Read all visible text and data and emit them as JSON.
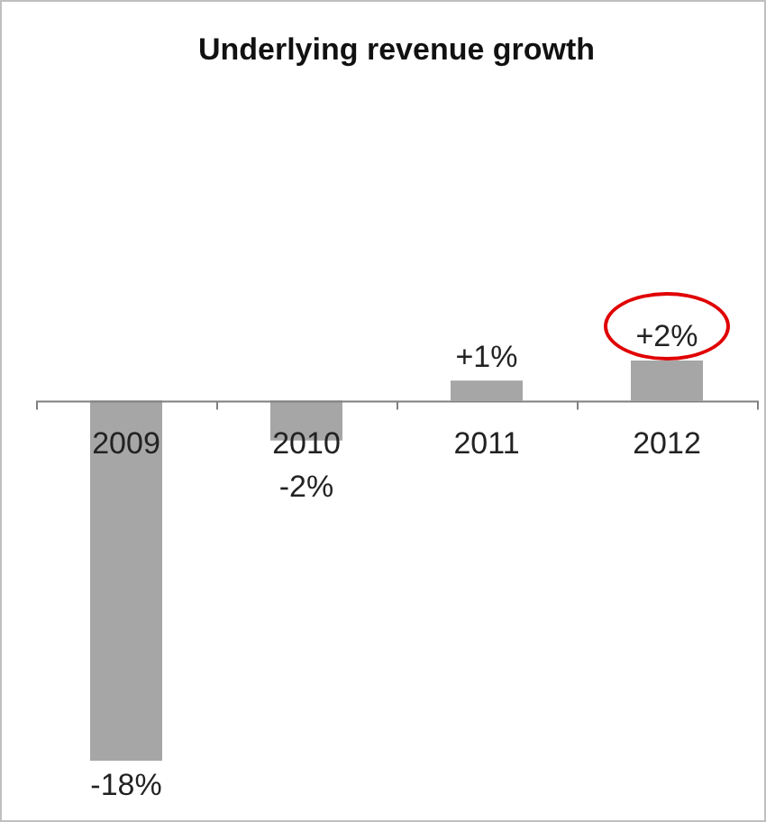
{
  "chart_data": {
    "type": "bar",
    "title": "Underlying revenue growth",
    "categories": [
      "2009",
      "2010",
      "2011",
      "2012"
    ],
    "values": [
      -18,
      -2,
      1,
      2
    ],
    "value_labels": [
      "-18%",
      "-2%",
      "+1%",
      "+2%"
    ],
    "color": "#a6a6a6"
  }
}
